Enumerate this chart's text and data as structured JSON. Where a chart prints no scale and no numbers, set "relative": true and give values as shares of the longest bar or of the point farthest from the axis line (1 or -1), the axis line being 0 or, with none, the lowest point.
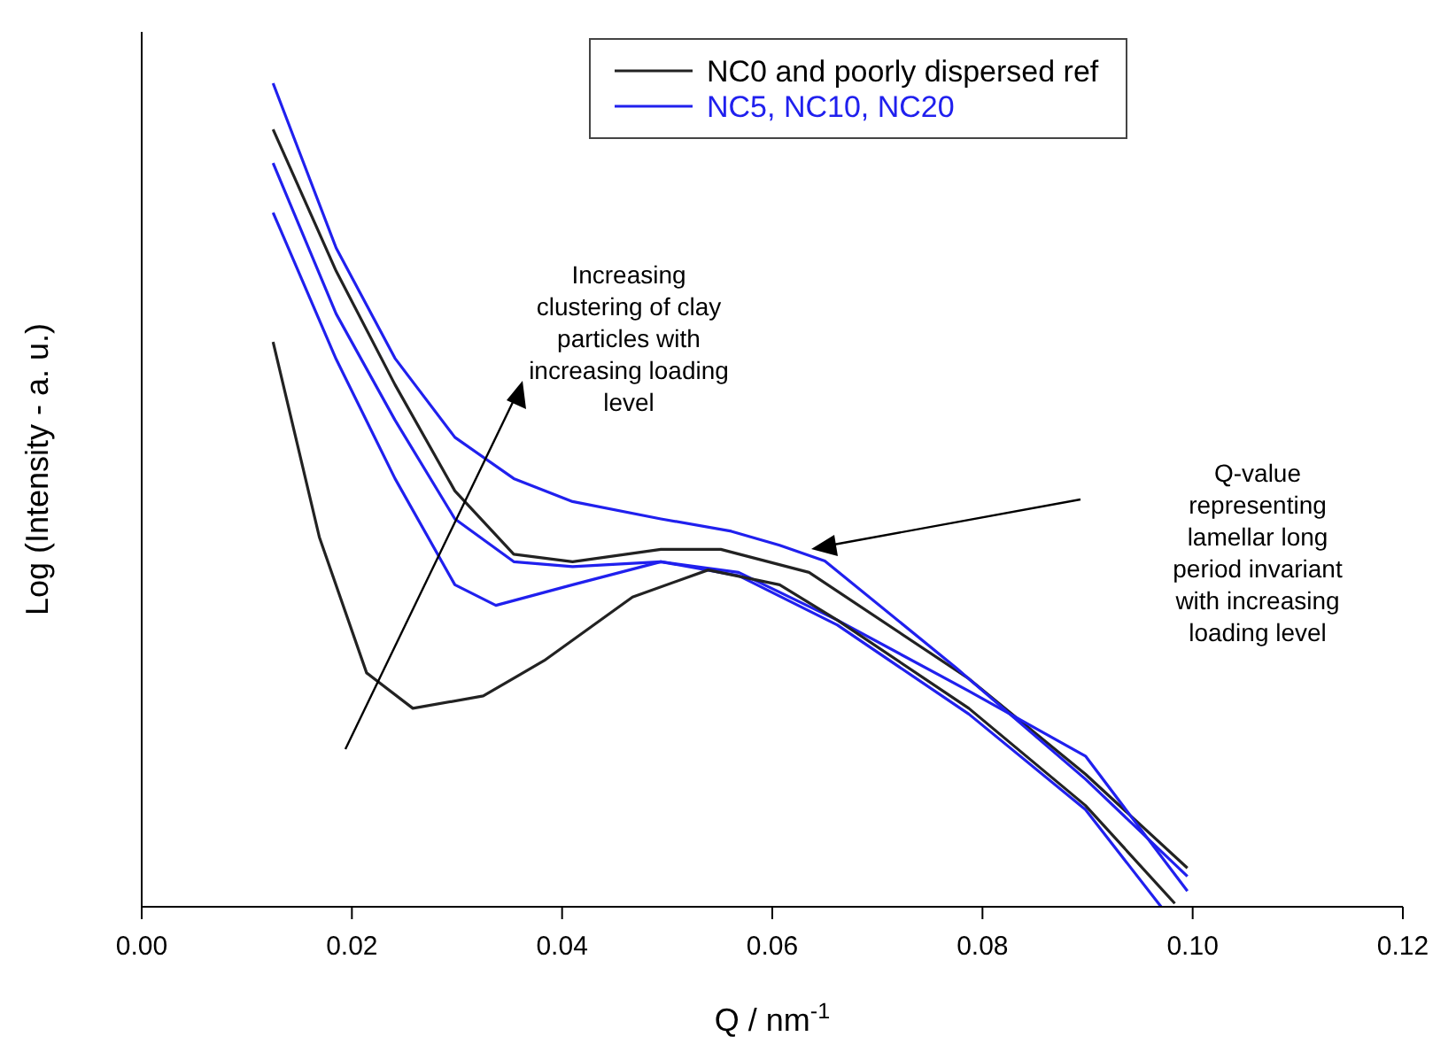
{
  "chart_data": {
    "type": "line",
    "relative": true,
    "xlabel": "Q / nm$^{-1}$",
    "ylabel": "Log (Intensity - a. u.)",
    "xlim": [
      0,
      0.12
    ],
    "xticks": [
      {
        "value": 0,
        "label": "0.00"
      },
      {
        "value": 0.02,
        "label": "0.02"
      },
      {
        "value": 0.04,
        "label": "0.04"
      },
      {
        "value": 0.06,
        "label": "0.06"
      },
      {
        "value": 0.08,
        "label": "0.08"
      },
      {
        "value": 0.1,
        "label": "0.10"
      },
      {
        "value": 0.12,
        "label": "0.12"
      }
    ],
    "legend": "top right",
    "line_style": "solid",
    "series": [
      {
        "name": "NC0 and poorly dispersed ref",
        "color": "#222222",
        "x": [
          0.0125,
          0.0185,
          0.0241,
          0.0298,
          0.0354,
          0.041,
          0.0494,
          0.0551,
          0.0635,
          0.0787,
          0.0898,
          0.0995
        ],
        "values": [
          0.944,
          0.772,
          0.634,
          0.505,
          0.428,
          0.419,
          0.434,
          0.434,
          0.406,
          0.277,
          0.161,
          0.047
        ]
      },
      {
        "name": "NC5, NC10, NC20",
        "color": "#2020ee",
        "x": [
          0.0125,
          0.0185,
          0.0241,
          0.0298,
          0.0354,
          0.041,
          0.0494,
          0.0561,
          0.0607,
          0.065,
          0.0775,
          0.0898,
          0.0995
        ],
        "values": [
          1,
          0.8,
          0.666,
          0.57,
          0.52,
          0.492,
          0.471,
          0.456,
          0.439,
          0.42,
          0.29,
          0.155,
          0.037
        ]
      },
      {
        "color": "#2020ee",
        "x": [
          0.0125,
          0.0185,
          0.0241,
          0.0298,
          0.0354,
          0.041,
          0.0494,
          0.0568,
          0.0662,
          0.0787,
          0.0898,
          0.0995
        ],
        "values": [
          0.903,
          0.72,
          0.591,
          0.471,
          0.419,
          0.413,
          0.419,
          0.406,
          0.348,
          0.262,
          0.183,
          0.019
        ]
      },
      {
        "color": "#2020ee",
        "x": [
          0.0125,
          0.0185,
          0.0241,
          0.0298,
          0.0337,
          0.041,
          0.0494,
          0.0568,
          0.0662,
          0.0787,
          0.0898,
          0.097
        ],
        "values": [
          0.843,
          0.665,
          0.52,
          0.391,
          0.366,
          0.391,
          0.419,
          0.402,
          0.342,
          0.234,
          0.118,
          0
        ]
      },
      {
        "color": "#222222",
        "x": [
          0.0125,
          0.0169,
          0.0214,
          0.0258,
          0.0325,
          0.0383,
          0.0467,
          0.0539,
          0.0607,
          0.0662,
          0.0787,
          0.0898,
          0.0983
        ],
        "values": [
          0.686,
          0.449,
          0.284,
          0.241,
          0.256,
          0.299,
          0.376,
          0.409,
          0.391,
          0.348,
          0.241,
          0.123,
          0.004
        ]
      }
    ],
    "annotations": [
      "Increasing clustering of clay particles with increasing loading level",
      "Q-value representing lamellar long period invariant with increasing loading level"
    ]
  }
}
